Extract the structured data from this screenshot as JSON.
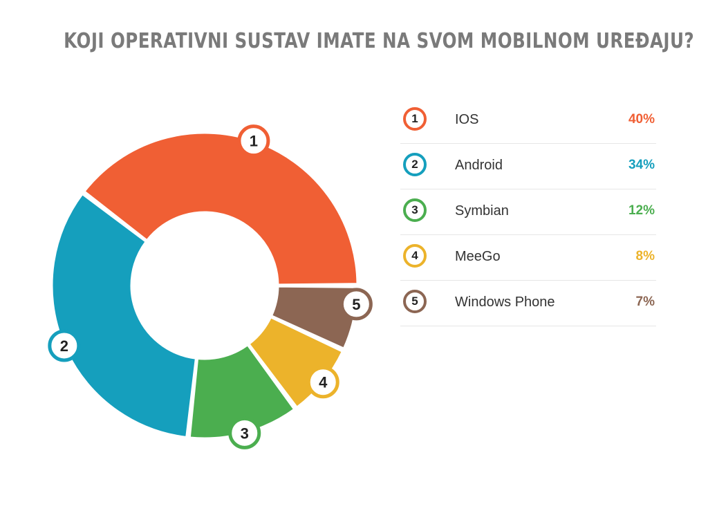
{
  "chart_data": {
    "type": "pie",
    "title": "KOJI OPERATIVNI SUSTAV IMATE NA SVOM MOBILNOM UREĐAJU?",
    "categories": [
      "IOS",
      "Android",
      "Symbian",
      "MeeGo",
      "Windows Phone"
    ],
    "values": [
      40,
      34,
      12,
      8,
      7
    ],
    "value_labels": [
      "40%",
      "34%",
      "12%",
      "8%",
      "7%"
    ],
    "badges": [
      "1",
      "2",
      "3",
      "4",
      "5"
    ],
    "colors": [
      "#f05f34",
      "#159fbd",
      "#4bae4f",
      "#ecb32b",
      "#8c6653"
    ],
    "legend_position": "right",
    "donut": true
  }
}
